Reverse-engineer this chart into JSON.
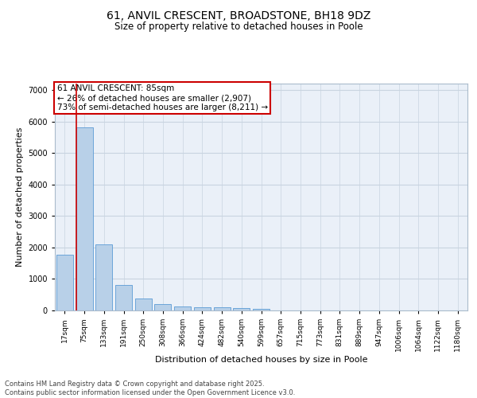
{
  "title_line1": "61, ANVIL CRESCENT, BROADSTONE, BH18 9DZ",
  "title_line2": "Size of property relative to detached houses in Poole",
  "xlabel": "Distribution of detached houses by size in Poole",
  "ylabel": "Number of detached properties",
  "bar_color": "#b8d0e8",
  "bar_edge_color": "#5b9bd5",
  "background_color": "#eaf0f8",
  "annotation_text": "61 ANVIL CRESCENT: 85sqm\n← 26% of detached houses are smaller (2,907)\n73% of semi-detached houses are larger (8,211) →",
  "vline_color": "#cc0000",
  "categories": [
    "17sqm",
    "75sqm",
    "133sqm",
    "191sqm",
    "250sqm",
    "308sqm",
    "366sqm",
    "424sqm",
    "482sqm",
    "540sqm",
    "599sqm",
    "657sqm",
    "715sqm",
    "773sqm",
    "831sqm",
    "889sqm",
    "947sqm",
    "1006sqm",
    "1064sqm",
    "1122sqm",
    "1180sqm"
  ],
  "values": [
    1780,
    5820,
    2090,
    820,
    370,
    210,
    130,
    110,
    100,
    70,
    55,
    0,
    0,
    0,
    0,
    0,
    0,
    0,
    0,
    0,
    0
  ],
  "ylim": [
    0,
    7200
  ],
  "yticks": [
    0,
    1000,
    2000,
    3000,
    4000,
    5000,
    6000,
    7000
  ],
  "footer_text": "Contains HM Land Registry data © Crown copyright and database right 2025.\nContains public sector information licensed under the Open Government Licence v3.0.",
  "title_fontsize": 10,
  "subtitle_fontsize": 8.5,
  "tick_fontsize": 6.5,
  "label_fontsize": 8,
  "annotation_fontsize": 7.5,
  "footer_fontsize": 6
}
